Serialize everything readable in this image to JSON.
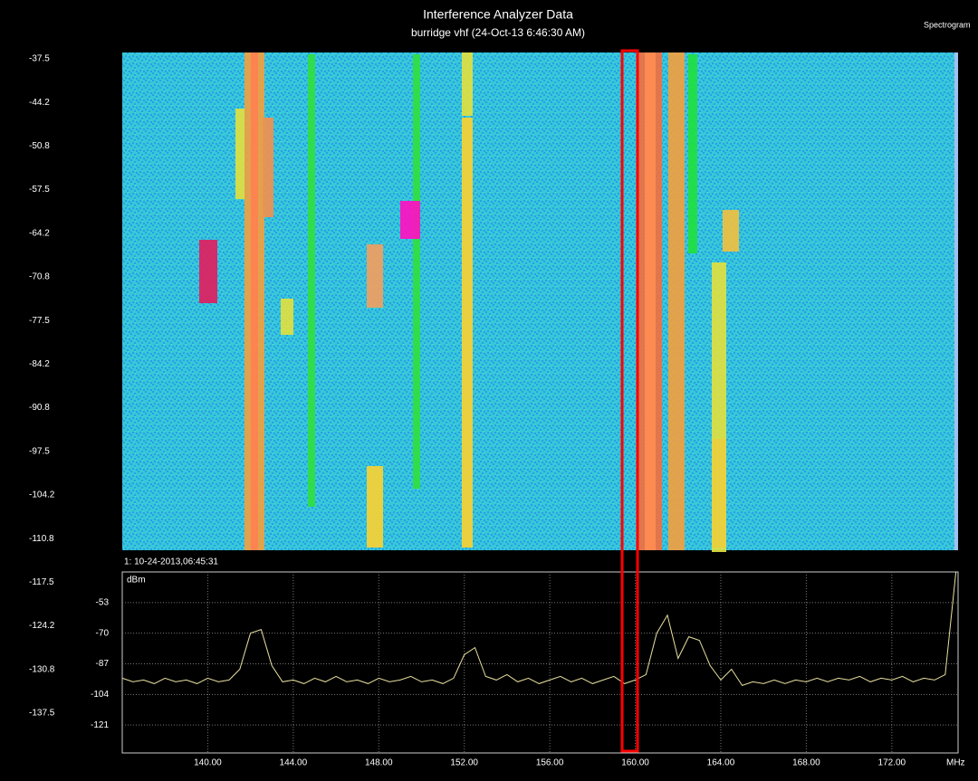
{
  "header": {
    "title": "Interference Analyzer Data",
    "subtitle": "burridge vhf (24-Oct-13 6:46:30 AM)",
    "mode": "Spectrogram"
  },
  "scale_labels": [
    "-37.5",
    "-44.2",
    "-50.8",
    "-57.5",
    "-64.2",
    "-70.8",
    "-77.5",
    "-84.2",
    "-90.8",
    "-97.5",
    "-104.2",
    "-110.8",
    "-117.5",
    "-124.2",
    "-130.8",
    "-137.5"
  ],
  "timestamp": "1: 10-24-2013,06:45:31",
  "chart_data": {
    "type": "line",
    "y_label": "dBm",
    "x_label": "MHz",
    "color": "#e8e0a0",
    "grid": true,
    "x": [
      136,
      136.5,
      137,
      137.5,
      138,
      138.5,
      139,
      139.5,
      140,
      140.5,
      141,
      141.5,
      142,
      142.5,
      143,
      143.5,
      144,
      144.5,
      145,
      145.5,
      146,
      146.5,
      147,
      147.5,
      148,
      148.5,
      149,
      149.5,
      150,
      150.5,
      151,
      151.5,
      152,
      152.5,
      153,
      153.5,
      154,
      154.5,
      155,
      155.5,
      156,
      156.5,
      157,
      157.5,
      158,
      158.5,
      159,
      159.5,
      160,
      160.5,
      161,
      161.5,
      162,
      162.5,
      163,
      163.5,
      164,
      164.5,
      165,
      165.5,
      166,
      166.5,
      167,
      167.5,
      168,
      168.5,
      169,
      169.5,
      170,
      170.5,
      171,
      171.5,
      172,
      172.5,
      173,
      173.5,
      174,
      174.5,
      175
    ],
    "values": [
      -95,
      -97,
      -96,
      -98,
      -95,
      -97,
      -96,
      -98,
      -95,
      -97,
      -96,
      -90,
      -70,
      -68,
      -88,
      -97,
      -96,
      -98,
      -95,
      -97,
      -94,
      -97,
      -96,
      -98,
      -95,
      -97,
      -96,
      -94,
      -97,
      -96,
      -98,
      -95,
      -82,
      -78,
      -94,
      -96,
      -93,
      -97,
      -95,
      -98,
      -96,
      -94,
      -97,
      -95,
      -98,
      -96,
      -94,
      -98,
      -96,
      -93,
      -70,
      -60,
      -84,
      -72,
      -74,
      -88,
      -96,
      -90,
      -99,
      -97,
      -98,
      -96,
      -98,
      -96,
      -97,
      -95,
      -97,
      -95,
      -96,
      -94,
      -97,
      -95,
      -96,
      -94,
      -97,
      -95,
      -96,
      -93,
      -36
    ],
    "xlim": [
      136,
      175.1
    ],
    "ylim": [
      -136.5,
      -36
    ],
    "xticks": [
      {
        "value": 140,
        "label": "140.00"
      },
      {
        "value": 144,
        "label": "144.00"
      },
      {
        "value": 148,
        "label": "148.00"
      },
      {
        "value": 152,
        "label": "152.00"
      },
      {
        "value": 156,
        "label": "156.00"
      },
      {
        "value": 160,
        "label": "160.00"
      },
      {
        "value": 164,
        "label": "164.00"
      },
      {
        "value": 168,
        "label": "168.00"
      },
      {
        "value": 172,
        "label": "172.00"
      }
    ],
    "yticks": [
      -53,
      -70,
      -87,
      -104,
      -121
    ]
  }
}
